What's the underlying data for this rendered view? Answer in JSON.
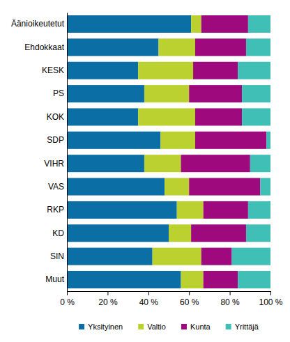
{
  "chart_data": {
    "type": "bar",
    "orientation": "horizontal",
    "stacked": true,
    "grid": false,
    "legend": "bottom",
    "categories": [
      "Äänioikeutetut",
      "Ehdokkaat",
      "KESK",
      "PS",
      "KOK",
      "SDP",
      "VIHR",
      "VAS",
      "RKP",
      "KD",
      "SIN",
      "Muut"
    ],
    "series": [
      {
        "name": "Yksityinen",
        "color": "#0b6fa6",
        "values": [
          61,
          45,
          35,
          38,
          35,
          46,
          38,
          48,
          54,
          50,
          42,
          56
        ]
      },
      {
        "name": "Valtio",
        "color": "#bbd12f",
        "values": [
          5,
          18,
          27,
          22,
          28,
          17,
          18,
          12,
          13,
          11,
          24,
          11
        ]
      },
      {
        "name": "Kunta",
        "color": "#9e0a7e",
        "values": [
          23,
          25,
          22,
          26,
          23,
          35,
          34,
          35,
          22,
          27,
          15,
          17
        ]
      },
      {
        "name": "Yrittäjä",
        "color": "#3fbfb6",
        "values": [
          11,
          12,
          16,
          14,
          14,
          2,
          10,
          5,
          11,
          12,
          19,
          16
        ]
      }
    ],
    "xlim": [
      0,
      100
    ],
    "xticks": [
      {
        "value": 0,
        "label": "0 %"
      },
      {
        "value": 20,
        "label": "20 %"
      },
      {
        "value": 40,
        "label": "40 %"
      },
      {
        "value": 60,
        "label": "60 %"
      },
      {
        "value": 80,
        "label": "80 %"
      },
      {
        "value": 100,
        "label": "100 %"
      }
    ]
  }
}
